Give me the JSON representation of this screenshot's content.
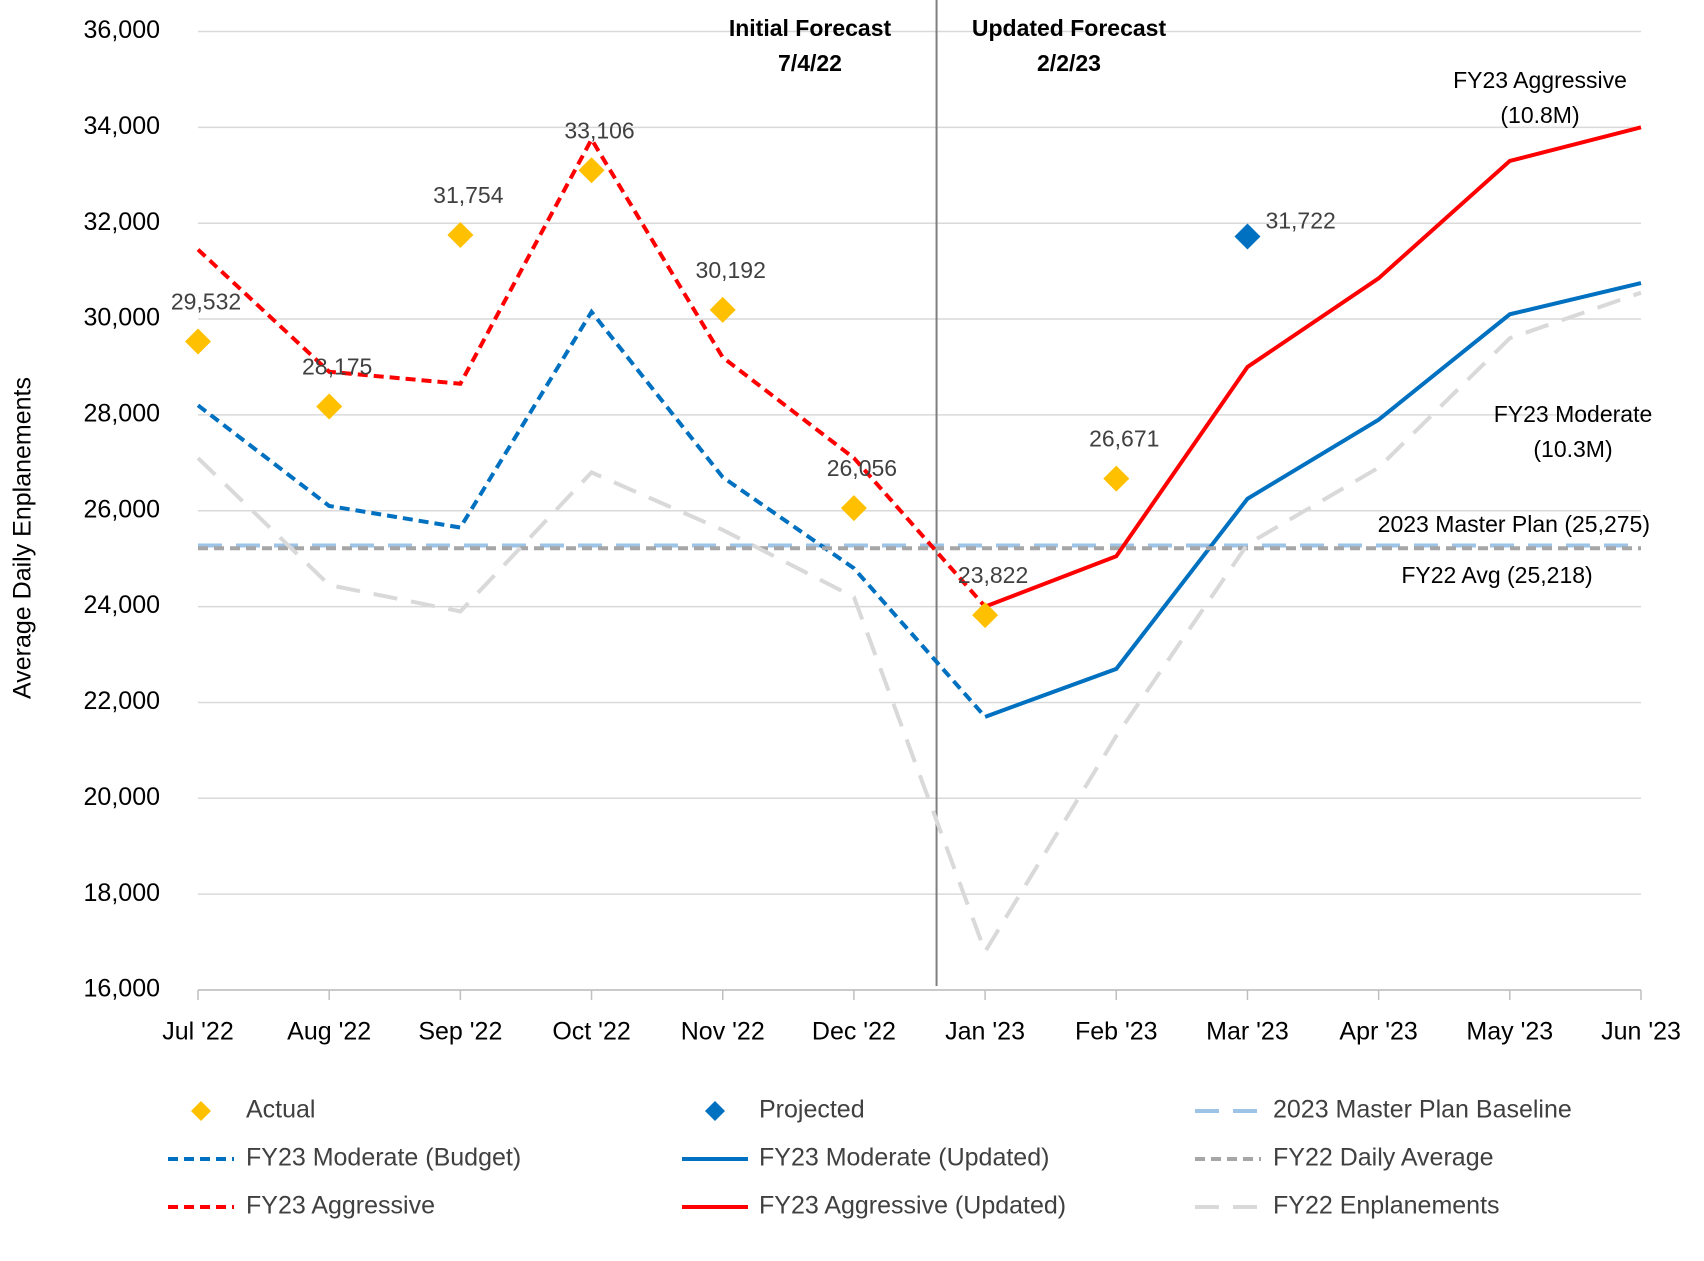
{
  "chart_data": {
    "type": "line",
    "y_label": "Average Daily Enplanements",
    "categories": [
      "Jul '22",
      "Aug '22",
      "Sep '22",
      "Oct '22",
      "Nov '22",
      "Dec '22",
      "Jan '23",
      "Feb '23",
      "Mar '23",
      "Apr '23",
      "May '23",
      "Jun '23"
    ],
    "ylim": [
      16000,
      36000
    ],
    "yticks": [
      {
        "value": 16000,
        "label": "16,000"
      },
      {
        "value": 18000,
        "label": "18,000"
      },
      {
        "value": 20000,
        "label": "20,000"
      },
      {
        "value": 22000,
        "label": "22,000"
      },
      {
        "value": 24000,
        "label": "24,000"
      },
      {
        "value": 26000,
        "label": "26,000"
      },
      {
        "value": 28000,
        "label": "28,000"
      },
      {
        "value": 30000,
        "label": "30,000"
      },
      {
        "value": 32000,
        "label": "32,000"
      },
      {
        "value": 34000,
        "label": "34,000"
      },
      {
        "value": 36000,
        "label": "36,000"
      }
    ],
    "grid": true,
    "legend": "bottom",
    "series": [
      {
        "name": "Actual",
        "color": "#FFC000",
        "style": "marker",
        "values": [
          29532,
          28175,
          31754,
          33106,
          30192,
          26056,
          23822,
          26671,
          null,
          null,
          null,
          null
        ],
        "value_labels": [
          "29,532",
          "28,175",
          "31,754",
          "33,106",
          "30,192",
          "26,056",
          "23,822",
          "26,671",
          null,
          null,
          null,
          null
        ]
      },
      {
        "name": "Projected",
        "color": "#0070C0",
        "style": "marker",
        "values": [
          null,
          null,
          null,
          null,
          null,
          null,
          null,
          null,
          31722,
          null,
          null,
          null
        ],
        "value_labels": [
          null,
          null,
          null,
          null,
          null,
          null,
          null,
          null,
          "31,722",
          null,
          null,
          null
        ]
      },
      {
        "name": "2023 Master Plan Baseline",
        "color": "#9DC3E6",
        "style": "long",
        "values": [
          25275,
          25275,
          25275,
          25275,
          25275,
          25275,
          25275,
          25275,
          25275,
          25275,
          25275,
          25275
        ]
      },
      {
        "name": "FY23 Moderate (Budget)",
        "color": "#0070C0",
        "style": "short",
        "values": [
          28200,
          26100,
          25650,
          30150,
          26700,
          24800,
          21700,
          null,
          null,
          null,
          null,
          null
        ]
      },
      {
        "name": "FY23 Moderate (Updated)",
        "color": "#0070C0",
        "style": "solid",
        "values": [
          null,
          null,
          null,
          null,
          null,
          null,
          21700,
          22700,
          26250,
          27900,
          30100,
          30750
        ]
      },
      {
        "name": "FY22 Daily Average",
        "color": "#A6A6A6",
        "style": "short",
        "values": [
          25218,
          25218,
          25218,
          25218,
          25218,
          25218,
          25218,
          25218,
          25218,
          25218,
          25218,
          25218
        ]
      },
      {
        "name": "FY23 Aggressive",
        "color": "#FF0000",
        "style": "short",
        "values": [
          31450,
          28900,
          28650,
          33750,
          29200,
          27100,
          24000,
          null,
          null,
          null,
          null,
          null
        ]
      },
      {
        "name": "FY23 Aggressive (Updated)",
        "color": "#FF0000",
        "style": "solid",
        "values": [
          null,
          null,
          null,
          null,
          null,
          null,
          24000,
          25050,
          29000,
          30850,
          33300,
          34000
        ]
      },
      {
        "name": "FY22 Enplanements",
        "color": "#D9D9D9",
        "style": "long",
        "values": [
          27100,
          24450,
          23900,
          26800,
          25600,
          24200,
          16800,
          21300,
          25300,
          26900,
          29600,
          30550
        ]
      }
    ],
    "annotations": [
      {
        "lines": [
          "Initial Forecast",
          "7/4/22"
        ]
      },
      {
        "lines": [
          "Updated Forecast",
          "2/2/23"
        ]
      },
      {
        "lines": [
          "FY23 Aggressive",
          "(10.8M)"
        ]
      },
      {
        "lines": [
          "FY23 Moderate",
          "(10.3M)"
        ]
      },
      {
        "lines": [
          "2023 Master Plan (25,275)"
        ]
      },
      {
        "lines": [
          "FY22 Avg (25,218)"
        ]
      }
    ]
  }
}
